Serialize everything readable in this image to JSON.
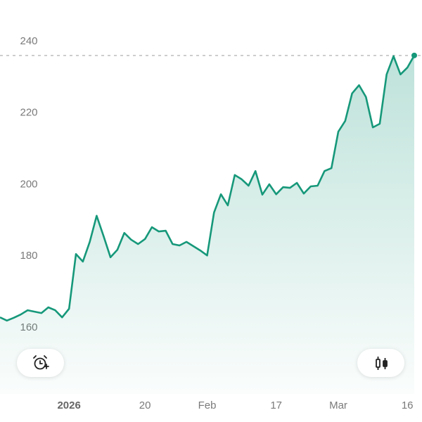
{
  "chart_data": {
    "type": "line",
    "categories": [
      null,
      null,
      null,
      null,
      null,
      null,
      null,
      null,
      null,
      null,
      "2026",
      null,
      null,
      null,
      null,
      null,
      null,
      null,
      null,
      null,
      null,
      "20",
      null,
      null,
      null,
      null,
      null,
      null,
      null,
      null,
      "Feb",
      null,
      null,
      null,
      null,
      null,
      null,
      null,
      null,
      null,
      "17",
      null,
      null,
      null,
      null,
      null,
      null,
      null,
      null,
      "Mar",
      null,
      null,
      null,
      null,
      null,
      null,
      null,
      null,
      null,
      "16",
      null
    ],
    "series": [
      {
        "color": "#16987a",
        "values": [
          162.9,
          162.0,
          162.8,
          163.7,
          164.9,
          164.5,
          164.1,
          165.7,
          164.9,
          162.9,
          165.3,
          180.6,
          178.5,
          184.0,
          191.3,
          185.6,
          179.7,
          181.8,
          186.5,
          184.6,
          183.4,
          184.8,
          188.1,
          186.9,
          187.1,
          183.4,
          183.0,
          184.0,
          182.8,
          181.6,
          180.2,
          192.2,
          197.3,
          194.2,
          202.7,
          201.5,
          199.7,
          203.8,
          197.2,
          200.1,
          197.3,
          199.3,
          199.1,
          200.5,
          197.5,
          199.5,
          199.7,
          203.8,
          204.6,
          214.8,
          217.8,
          225.5,
          227.8,
          224.5,
          216.0,
          217.0,
          230.8,
          235.9,
          230.8,
          232.7,
          236.1
        ]
      }
    ],
    "ylim": [
      160,
      240
    ],
    "yticks": [
      160,
      180,
      200,
      220,
      240
    ],
    "grid": false
  }
}
